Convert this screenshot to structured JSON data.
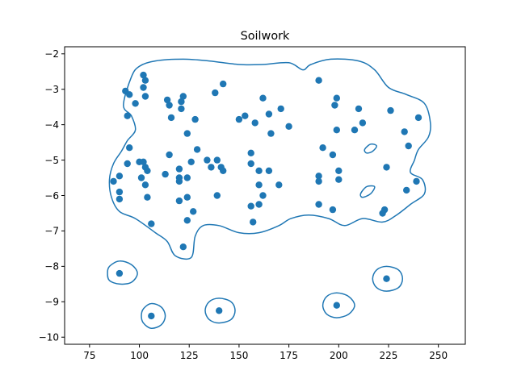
{
  "chart_data": {
    "type": "scatter",
    "title": "Soilwork",
    "xlabel": "",
    "ylabel": "",
    "xlim": [
      62.5,
      263.5
    ],
    "ylim": [
      -10.2,
      -1.8
    ],
    "xticks": [
      75,
      100,
      125,
      150,
      175,
      200,
      225,
      250
    ],
    "yticks": [
      -2,
      -3,
      -4,
      -5,
      -6,
      -7,
      -8,
      -9,
      -10
    ],
    "grid": false,
    "legend": "none",
    "colors": {
      "points": "#1f77b4",
      "contour": "#1f77b4",
      "axes": "#000000"
    },
    "points": [
      [
        102,
        -2.6
      ],
      [
        103,
        -2.75
      ],
      [
        93,
        -3.05
      ],
      [
        95,
        -3.15
      ],
      [
        98,
        -3.4
      ],
      [
        102,
        -2.95
      ],
      [
        103,
        -3.2
      ],
      [
        94,
        -3.75
      ],
      [
        114,
        -3.3
      ],
      [
        115,
        -3.45
      ],
      [
        116,
        -3.8
      ],
      [
        121,
        -3.35
      ],
      [
        122,
        -3.2
      ],
      [
        121,
        -3.55
      ],
      [
        128,
        -3.85
      ],
      [
        124,
        -4.25
      ],
      [
        138,
        -3.1
      ],
      [
        142,
        -2.85
      ],
      [
        95,
        -4.65
      ],
      [
        94,
        -5.1
      ],
      [
        100,
        -5.05
      ],
      [
        102,
        -5.05
      ],
      [
        103,
        -5.2
      ],
      [
        104,
        -5.3
      ],
      [
        101,
        -5.5
      ],
      [
        103,
        -5.7
      ],
      [
        104,
        -6.05
      ],
      [
        90,
        -5.45
      ],
      [
        87,
        -5.6
      ],
      [
        90,
        -5.9
      ],
      [
        90,
        -6.1
      ],
      [
        106,
        -6.8
      ],
      [
        113,
        -5.4
      ],
      [
        115,
        -4.85
      ],
      [
        120,
        -5.25
      ],
      [
        120,
        -5.5
      ],
      [
        120,
        -5.6
      ],
      [
        124,
        -5.5
      ],
      [
        126,
        -5.05
      ],
      [
        129,
        -4.7
      ],
      [
        120,
        -6.15
      ],
      [
        124,
        -6.05
      ],
      [
        127,
        -6.45
      ],
      [
        124,
        -6.7
      ],
      [
        122,
        -7.45
      ],
      [
        134,
        -5.0
      ],
      [
        136,
        -5.2
      ],
      [
        139,
        -5.0
      ],
      [
        141,
        -5.2
      ],
      [
        142,
        -5.3
      ],
      [
        139,
        -6.0
      ],
      [
        150,
        -3.85
      ],
      [
        153,
        -3.75
      ],
      [
        158,
        -3.95
      ],
      [
        162,
        -3.25
      ],
      [
        165,
        -3.7
      ],
      [
        166,
        -4.25
      ],
      [
        171,
        -3.55
      ],
      [
        175,
        -4.05
      ],
      [
        156,
        -4.8
      ],
      [
        156,
        -5.1
      ],
      [
        160,
        -5.3
      ],
      [
        165,
        -5.3
      ],
      [
        170,
        -5.7
      ],
      [
        160,
        -5.7
      ],
      [
        162,
        -6.0
      ],
      [
        156,
        -6.3
      ],
      [
        160,
        -6.25
      ],
      [
        157,
        -6.75
      ],
      [
        190,
        -2.75
      ],
      [
        198,
        -3.45
      ],
      [
        199,
        -3.25
      ],
      [
        199,
        -4.15
      ],
      [
        192,
        -4.65
      ],
      [
        197,
        -4.85
      ],
      [
        200,
        -5.3
      ],
      [
        200,
        -5.55
      ],
      [
        190,
        -5.45
      ],
      [
        190,
        -5.6
      ],
      [
        190,
        -6.25
      ],
      [
        197,
        -6.4
      ],
      [
        208,
        -4.15
      ],
      [
        210,
        -3.55
      ],
      [
        212,
        -3.95
      ],
      [
        226,
        -3.6
      ],
      [
        233,
        -4.2
      ],
      [
        235,
        -4.6
      ],
      [
        240,
        -3.8
      ],
      [
        224,
        -5.2
      ],
      [
        234,
        -5.85
      ],
      [
        239,
        -5.6
      ],
      [
        223,
        -6.4
      ],
      [
        222,
        -6.5
      ],
      [
        90,
        -8.2
      ],
      [
        106,
        -9.4
      ],
      [
        140,
        -9.25
      ],
      [
        199,
        -9.1
      ],
      [
        224,
        -8.35
      ]
    ],
    "contours": [
      [
        [
          108,
          -2.2
        ],
        [
          122,
          -2.15
        ],
        [
          135,
          -2.2
        ],
        [
          150,
          -2.3
        ],
        [
          162,
          -2.3
        ],
        [
          175,
          -2.25
        ],
        [
          182,
          -2.45
        ],
        [
          186,
          -2.3
        ],
        [
          196,
          -2.15
        ],
        [
          210,
          -2.2
        ],
        [
          218,
          -2.45
        ],
        [
          225,
          -2.95
        ],
        [
          234,
          -3.15
        ],
        [
          243,
          -3.4
        ],
        [
          246,
          -3.95
        ],
        [
          245,
          -4.35
        ],
        [
          240,
          -4.7
        ],
        [
          238,
          -5.0
        ],
        [
          236,
          -5.35
        ],
        [
          242,
          -5.55
        ],
        [
          243,
          -5.95
        ],
        [
          236,
          -6.25
        ],
        [
          229,
          -6.55
        ],
        [
          222,
          -6.75
        ],
        [
          212,
          -6.65
        ],
        [
          203,
          -6.85
        ],
        [
          195,
          -6.65
        ],
        [
          185,
          -6.55
        ],
        [
          176,
          -6.65
        ],
        [
          170,
          -6.85
        ],
        [
          160,
          -7.05
        ],
        [
          150,
          -7.05
        ],
        [
          140,
          -6.85
        ],
        [
          132,
          -6.85
        ],
        [
          128,
          -7.15
        ],
        [
          126,
          -7.75
        ],
        [
          118,
          -7.7
        ],
        [
          114,
          -7.3
        ],
        [
          108,
          -7.05
        ],
        [
          98,
          -6.65
        ],
        [
          90,
          -6.45
        ],
        [
          86,
          -6.05
        ],
        [
          85,
          -5.55
        ],
        [
          87,
          -5.1
        ],
        [
          91,
          -4.75
        ],
        [
          94,
          -4.45
        ],
        [
          98,
          -4.15
        ],
        [
          96,
          -3.75
        ],
        [
          92,
          -3.45
        ],
        [
          96,
          -2.65
        ],
        [
          100,
          -2.35
        ]
      ],
      [
        [
          84,
          -8.2
        ],
        [
          85,
          -8.0
        ],
        [
          90,
          -7.85
        ],
        [
          96,
          -7.95
        ],
        [
          99,
          -8.2
        ],
        [
          96,
          -8.45
        ],
        [
          90,
          -8.5
        ],
        [
          85,
          -8.4
        ]
      ],
      [
        [
          101,
          -9.4
        ],
        [
          102,
          -9.2
        ],
        [
          106,
          -9.05
        ],
        [
          111,
          -9.15
        ],
        [
          113,
          -9.4
        ],
        [
          111,
          -9.65
        ],
        [
          106,
          -9.75
        ],
        [
          102,
          -9.6
        ]
      ],
      [
        [
          133,
          -9.25
        ],
        [
          135,
          -9.0
        ],
        [
          140,
          -8.9
        ],
        [
          146,
          -9.0
        ],
        [
          148,
          -9.25
        ],
        [
          146,
          -9.5
        ],
        [
          140,
          -9.6
        ],
        [
          135,
          -9.5
        ]
      ],
      [
        [
          192,
          -9.1
        ],
        [
          194,
          -8.85
        ],
        [
          199,
          -8.75
        ],
        [
          205,
          -8.85
        ],
        [
          208,
          -9.1
        ],
        [
          205,
          -9.35
        ],
        [
          199,
          -9.45
        ],
        [
          194,
          -9.35
        ]
      ],
      [
        [
          217,
          -8.35
        ],
        [
          219,
          -8.1
        ],
        [
          224,
          -8.0
        ],
        [
          230,
          -8.1
        ],
        [
          232,
          -8.35
        ],
        [
          230,
          -8.6
        ],
        [
          224,
          -8.7
        ],
        [
          219,
          -8.6
        ]
      ],
      [
        [
          213,
          -4.7
        ],
        [
          216,
          -4.55
        ],
        [
          219,
          -4.6
        ],
        [
          217,
          -4.75
        ],
        [
          214,
          -4.8
        ]
      ],
      [
        [
          211,
          -5.95
        ],
        [
          214,
          -5.75
        ],
        [
          218,
          -5.75
        ],
        [
          216,
          -5.95
        ],
        [
          212,
          -6.05
        ]
      ]
    ]
  }
}
